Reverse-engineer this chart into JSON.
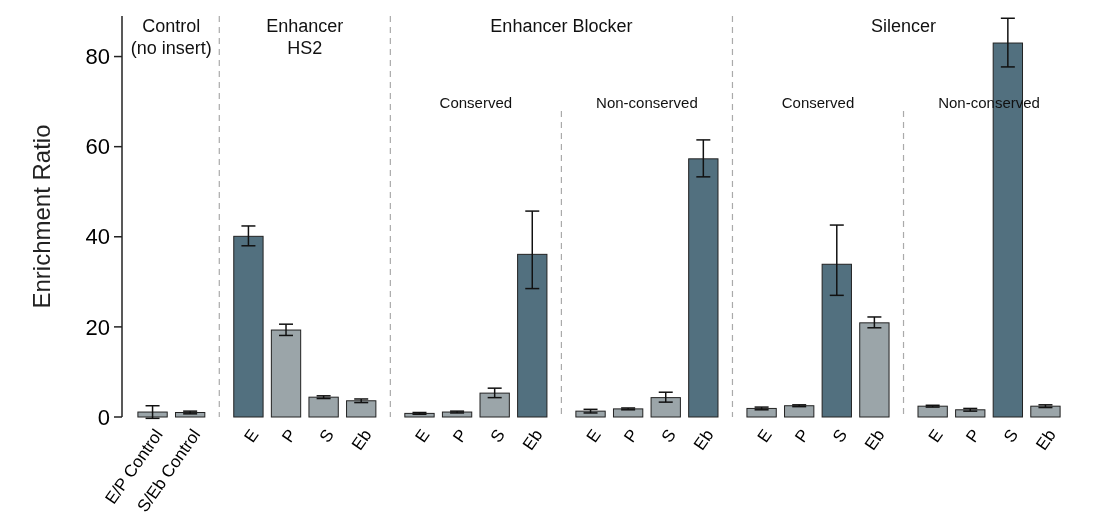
{
  "chart_data": {
    "type": "bar",
    "ylabel": "Enrichment Ratio",
    "categories": [
      "E/P Control",
      "S/Eb Control",
      "E",
      "P",
      "S",
      "Eb",
      "E",
      "P",
      "S",
      "Eb",
      "E",
      "P",
      "S",
      "Eb",
      "E",
      "P",
      "S",
      "Eb",
      "E",
      "P",
      "S",
      "Eb"
    ],
    "values": [
      1.1,
      1.0,
      40.1,
      19.3,
      4.4,
      3.6,
      0.8,
      1.1,
      5.3,
      36.1,
      1.3,
      1.8,
      4.3,
      57.3,
      1.9,
      2.5,
      33.9,
      20.9,
      2.4,
      1.6,
      83.0,
      2.4
    ],
    "errors": [
      1.4,
      0.3,
      [
        38.0,
        42.4
      ],
      [
        18.1,
        20.6
      ],
      0.3,
      0.4,
      0.2,
      0.2,
      [
        4.3,
        6.4
      ],
      [
        28.5,
        45.7
      ],
      0.4,
      0.2,
      [
        3.3,
        5.5
      ],
      [
        53.3,
        61.5
      ],
      0.3,
      0.2,
      [
        27.0,
        42.6
      ],
      [
        19.8,
        22.2
      ],
      0.2,
      0.3,
      [
        77.7,
        88.5
      ],
      0.3
    ],
    "colors": [
      "#9ba5a9",
      "#9ba5a9",
      "#52707f",
      "#9ba5a9",
      "#9ba5a9",
      "#9ba5a9",
      "#9ba5a9",
      "#9ba5a9",
      "#9ba5a9",
      "#52707f",
      "#9ba5a9",
      "#9ba5a9",
      "#9ba5a9",
      "#52707f",
      "#9ba5a9",
      "#9ba5a9",
      "#52707f",
      "#9ba5a9",
      "#9ba5a9",
      "#9ba5a9",
      "#52707f",
      "#9ba5a9"
    ],
    "ylim": [
      0,
      89
    ],
    "yticks": [
      0,
      20,
      40,
      60,
      80
    ],
    "annotations": [
      "Control\n(no insert)",
      "Enhancer\nHS2",
      "Enhancer Blocker",
      "Conserved",
      "Non-conserved",
      "Silencer",
      "Conserved",
      "Non-conserved"
    ]
  }
}
